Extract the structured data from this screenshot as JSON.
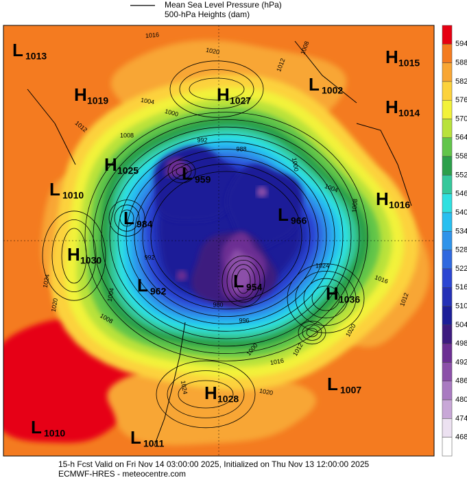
{
  "legend": {
    "mslp": "Mean Sea Level Pressure (hPa)",
    "heights": "500-hPa Heights (dam)"
  },
  "colorbar": {
    "levels": [
      594,
      588,
      582,
      576,
      570,
      564,
      558,
      552,
      546,
      540,
      534,
      528,
      522,
      516,
      510,
      504,
      498,
      492,
      486,
      480,
      474,
      468
    ],
    "colors": [
      "#e60012",
      "#f47b20",
      "#f8a634",
      "#fcd23c",
      "#f2f23a",
      "#b9e23b",
      "#62c54a",
      "#2c9f4a",
      "#35c89b",
      "#2fe0e0",
      "#28bff0",
      "#2f93ea",
      "#2f68df",
      "#2b45d2",
      "#2430b6",
      "#1c1e98",
      "#3d1b7f",
      "#6c2f93",
      "#8c50a9",
      "#a97ac1",
      "#c8a7d7",
      "#ece1f1"
    ]
  },
  "centers": [
    {
      "kind": "L",
      "value": 1013
    },
    {
      "kind": "H",
      "value": 1019
    },
    {
      "kind": "H",
      "value": 1027
    },
    {
      "kind": "L",
      "value": 1002
    },
    {
      "kind": "H",
      "value": 1015
    },
    {
      "kind": "H",
      "value": 1014
    },
    {
      "kind": "H",
      "value": 1025
    },
    {
      "kind": "L",
      "value": 959
    },
    {
      "kind": "L",
      "value": 1010
    },
    {
      "kind": "H",
      "value": 1016
    },
    {
      "kind": "L",
      "value": 984
    },
    {
      "kind": "L",
      "value": 966
    },
    {
      "kind": "H",
      "value": 1030
    },
    {
      "kind": "L",
      "value": 962
    },
    {
      "kind": "L",
      "value": 954
    },
    {
      "kind": "H",
      "value": 1036
    },
    {
      "kind": "H",
      "value": 1028
    },
    {
      "kind": "L",
      "value": 1007
    },
    {
      "kind": "L",
      "value": 1010
    },
    {
      "kind": "L",
      "value": 1011
    }
  ],
  "isobar_labels": [
    1016,
    1020,
    1008,
    1012,
    1004,
    1000,
    1008,
    1012,
    992,
    988,
    1000,
    1004,
    1008,
    1024,
    1016,
    1012,
    1020,
    1012,
    1016,
    1024,
    1020,
    992,
    1024,
    1020,
    1008,
    996,
    980,
    1000,
    1004
  ],
  "footer": {
    "line1": "15-h Fcst Valid on Fri Nov 14 03:00:00 2025, Initialized on Thu Nov 13 12:00:00 2025",
    "line2": "ECMWF-HRES  - meteocentre.com"
  }
}
